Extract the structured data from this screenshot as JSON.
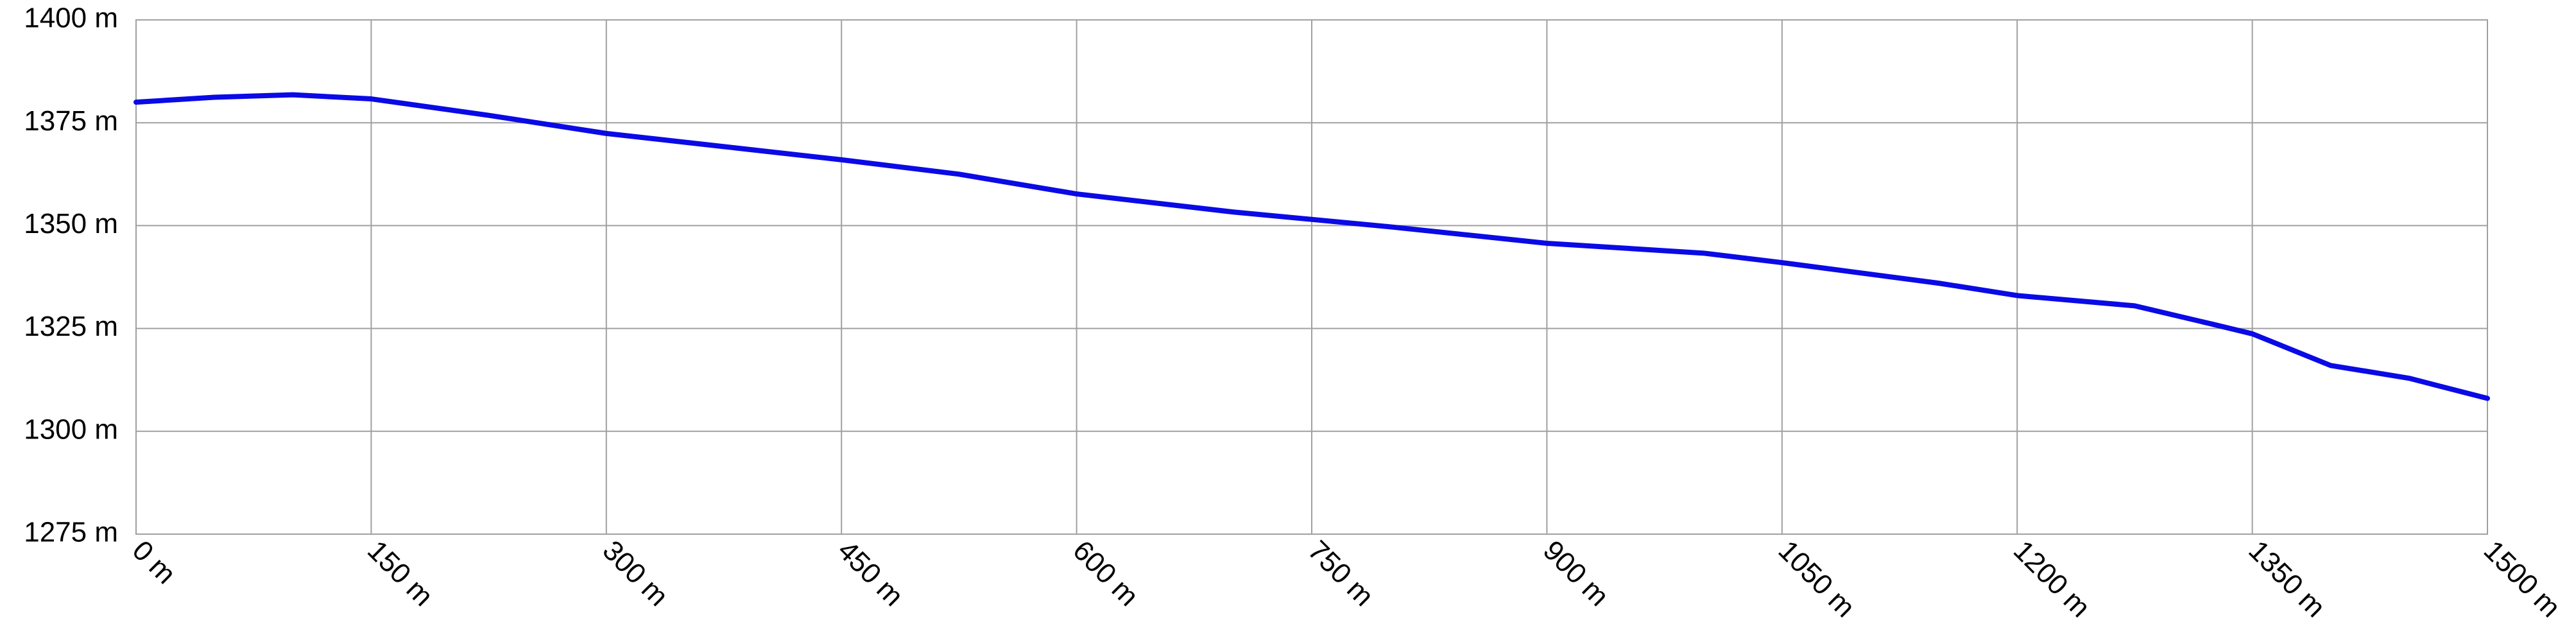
{
  "chart_data": {
    "type": "line",
    "x": [
      0,
      50,
      100,
      150,
      225,
      300,
      375,
      450,
      525,
      600,
      700,
      800,
      900,
      1000,
      1050,
      1150,
      1200,
      1275,
      1325,
      1350,
      1400,
      1450,
      1500
    ],
    "series": [
      {
        "color": "#0a0ae6",
        "values": [
          1380,
          1381.2,
          1381.8,
          1380.8,
          1376.8,
          1372.4,
          1369.2,
          1366,
          1362.5,
          1357.7,
          1353.3,
          1349.7,
          1345.7,
          1343.3,
          1341,
          1336,
          1333,
          1330.5,
          1326,
          1323.7,
          1316,
          1312.9,
          1308
        ]
      }
    ],
    "xlim": [
      0,
      1500
    ],
    "xticks": [
      {
        "value": 0,
        "label": "0 m"
      },
      {
        "value": 150,
        "label": "150 m"
      },
      {
        "value": 300,
        "label": "300 m"
      },
      {
        "value": 450,
        "label": "450 m"
      },
      {
        "value": 600,
        "label": "600 m"
      },
      {
        "value": 750,
        "label": "750 m"
      },
      {
        "value": 900,
        "label": "900 m"
      },
      {
        "value": 1050,
        "label": "1050 m"
      },
      {
        "value": 1200,
        "label": "1200 m"
      },
      {
        "value": 1350,
        "label": "1350 m"
      },
      {
        "value": 1500,
        "label": "1500 m"
      }
    ],
    "ylim": [
      1275,
      1400
    ],
    "yticks": [
      {
        "value": 1275,
        "label": "1275 m"
      },
      {
        "value": 1300,
        "label": "1300 m"
      },
      {
        "value": 1325,
        "label": "1325 m"
      },
      {
        "value": 1350,
        "label": "1350 m"
      },
      {
        "value": 1375,
        "label": "1375 m"
      },
      {
        "value": 1400,
        "label": "1400 m"
      }
    ],
    "grid": true
  }
}
